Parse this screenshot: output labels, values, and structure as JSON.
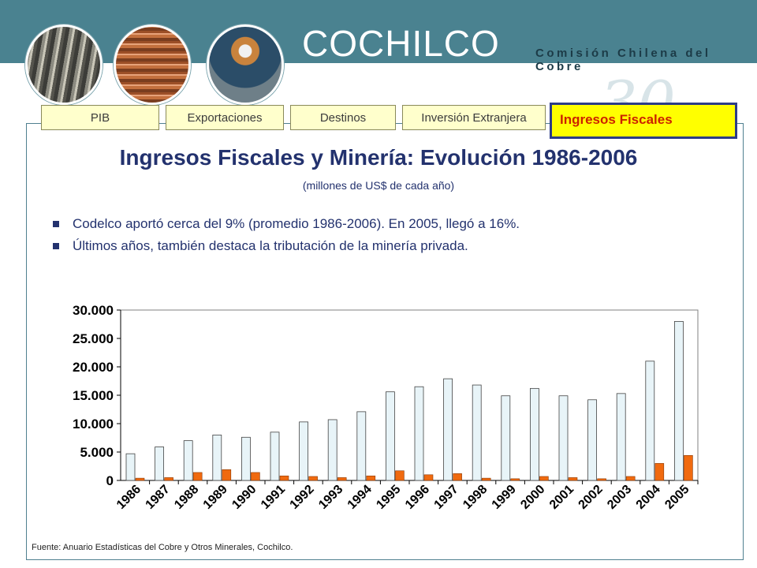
{
  "header": {
    "logo_text": "COCHILCO",
    "logo_subtitle": "Comisión Chilena del Cobre",
    "watermark_text": "30"
  },
  "tabs": [
    {
      "label": "PIB",
      "active": false
    },
    {
      "label": "Exportaciones",
      "active": false
    },
    {
      "label": "Destinos",
      "active": false
    },
    {
      "label": "Inversión Extranjera",
      "active": false
    },
    {
      "label": "Ingresos Fiscales",
      "active": true
    }
  ],
  "slide": {
    "title": "Ingresos Fiscales y Minería: Evolución 1986-2006",
    "subtitle": "(millones de US$ de cada año)",
    "bullets": [
      "Codelco aportó cerca del 9% (promedio 1986-2006). En 2005, llegó a 16%.",
      "Últimos años, también destaca la tributación de la minería privada."
    ],
    "source": "Fuente: Anuario Estadísticas del Cobre y Otros Minerales, Cochilco."
  },
  "colors": {
    "header": "#4a8290",
    "title": "#23326e",
    "series_total": "#e8f4f8",
    "series_codelco": "#f06a0f"
  },
  "chart_data": {
    "type": "bar",
    "categories": [
      "1986",
      "1987",
      "1988",
      "1989",
      "1990",
      "1991",
      "1992",
      "1993",
      "1994",
      "1995",
      "1996",
      "1997",
      "1998",
      "1999",
      "2000",
      "2001",
      "2002",
      "2003",
      "2004",
      "2005"
    ],
    "series": [
      {
        "values": [
          4700,
          5900,
          7000,
          8000,
          7600,
          8500,
          10300,
          10700,
          12100,
          15600,
          16500,
          17900,
          16800,
          14900,
          16200,
          14900,
          14200,
          15300,
          21000,
          28000
        ]
      },
      {
        "values": [
          400,
          500,
          1400,
          1900,
          1400,
          800,
          700,
          500,
          800,
          1700,
          1000,
          1200,
          400,
          300,
          700,
          500,
          300,
          700,
          3000,
          4400
        ]
      }
    ],
    "y_tick_labels": [
      "0",
      "5.000",
      "10.000",
      "15.000",
      "20.000",
      "25.000",
      "30.000"
    ],
    "ylim": [
      0,
      30000
    ],
    "grid": false
  }
}
